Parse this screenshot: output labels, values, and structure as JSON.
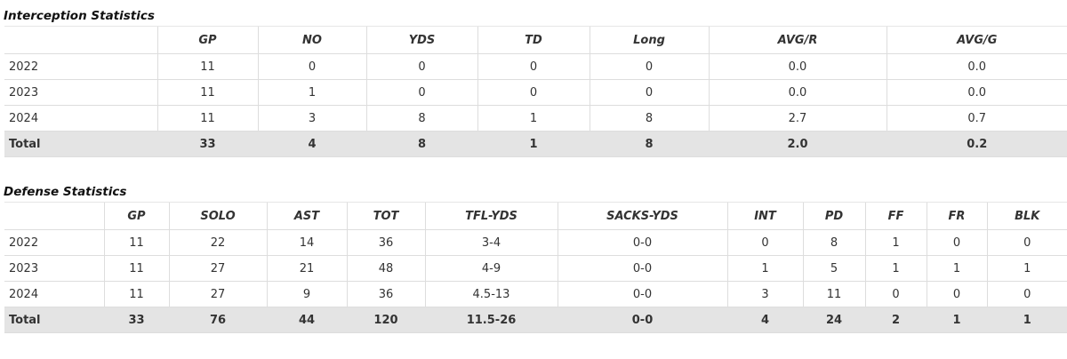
{
  "tables": [
    {
      "title": "Interception Statistics",
      "columns": [
        "GP",
        "NO",
        "YDS",
        "TD",
        "Long",
        "AVG/R",
        "AVG/G"
      ],
      "rows": [
        [
          "2022",
          "11",
          "0",
          "0",
          "0",
          "0",
          "0.0",
          "0.0"
        ],
        [
          "2023",
          "11",
          "1",
          "0",
          "0",
          "0",
          "0.0",
          "0.0"
        ],
        [
          "2024",
          "11",
          "3",
          "8",
          "1",
          "8",
          "2.7",
          "0.7"
        ],
        [
          "Total",
          "33",
          "4",
          "8",
          "1",
          "8",
          "2.0",
          "0.2"
        ]
      ]
    },
    {
      "title": "Defense Statistics",
      "columns": [
        "GP",
        "SOLO",
        "AST",
        "TOT",
        "TFL-YDS",
        "SACKS-YDS",
        "INT",
        "PD",
        "FF",
        "FR",
        "BLK"
      ],
      "rows": [
        [
          "2022",
          "11",
          "22",
          "14",
          "36",
          "3-4",
          "0-0",
          "0",
          "8",
          "1",
          "0",
          "0"
        ],
        [
          "2023",
          "11",
          "27",
          "21",
          "48",
          "4-9",
          "0-0",
          "1",
          "5",
          "1",
          "1",
          "1"
        ],
        [
          "2024",
          "11",
          "27",
          "9",
          "36",
          "4.5-13",
          "0-0",
          "3",
          "11",
          "0",
          "0",
          "0"
        ],
        [
          "Total",
          "33",
          "76",
          "44",
          "120",
          "11.5-26",
          "0-0",
          "4",
          "24",
          "2",
          "1",
          "1"
        ]
      ]
    }
  ]
}
